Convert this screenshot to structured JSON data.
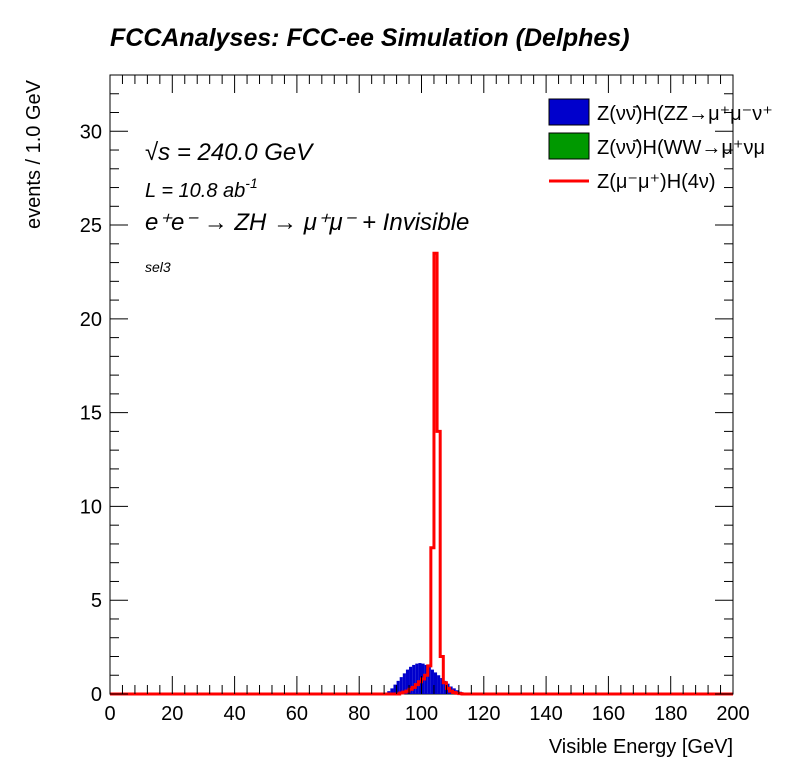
{
  "chart_data": {
    "type": "histogram",
    "title": "FCCAnalyses: FCC-ee Simulation (Delphes)",
    "xlabel": "Visible Energy [GeV]",
    "ylabel": "events / 1.0 GeV",
    "xlim": [
      0,
      200
    ],
    "ylim": [
      0,
      33
    ],
    "x_ticks": [
      0,
      20,
      40,
      60,
      80,
      100,
      120,
      140,
      160,
      180,
      200
    ],
    "y_ticks": [
      0,
      5,
      10,
      15,
      20,
      25,
      30
    ],
    "annotations": {
      "sqrt_s": "√s = 240.0 GeV",
      "lumi_prefix": "L = 10.8 ab",
      "lumi_exp": "-1",
      "process": "e⁺e⁻ → ZH → μ⁺μ⁻ + Invisible",
      "selection": "sel3"
    },
    "legend": {
      "position": "top-right",
      "entries": [
        {
          "label": "Z(νν̄)H(ZZ→μ⁺μ⁻ν⁺",
          "color": "#0000cc",
          "style": "fill"
        },
        {
          "label": "Z(νν̄)H(WW→μ⁺νμ",
          "color": "#009900",
          "style": "fill"
        },
        {
          "label": "Z(μ⁻μ⁺)H(4ν)",
          "color": "#ff0000",
          "style": "line"
        }
      ]
    },
    "series": [
      {
        "style": "stacked-fill",
        "color": "#0000cc",
        "bin_width": 1,
        "x": [
          88,
          89,
          90,
          91,
          92,
          93,
          94,
          95,
          96,
          97,
          98,
          99,
          100,
          101,
          102,
          103,
          104,
          105,
          106,
          107,
          108,
          109,
          110,
          111,
          112,
          113,
          114
        ],
        "values": [
          0.05,
          0.15,
          0.3,
          0.5,
          0.7,
          0.9,
          1.1,
          1.3,
          1.45,
          1.55,
          1.62,
          1.65,
          1.62,
          1.55,
          1.45,
          1.3,
          1.15,
          1.0,
          0.85,
          0.7,
          0.55,
          0.4,
          0.3,
          0.2,
          0.12,
          0.06,
          0.03
        ]
      },
      {
        "style": "stacked-fill",
        "color": "#009900",
        "bin_width": 1,
        "x": [],
        "values": []
      },
      {
        "style": "step-line",
        "color": "#ff0000",
        "bin_width": 1,
        "x": [
          93,
          94,
          95,
          96,
          97,
          98,
          99,
          100,
          101,
          102,
          103,
          104,
          105,
          106,
          107,
          108,
          109,
          110,
          111,
          112
        ],
        "values": [
          0.05,
          0.1,
          0.15,
          0.25,
          0.35,
          0.5,
          0.65,
          0.8,
          1.0,
          1.5,
          7.8,
          23.5,
          14.0,
          2.0,
          0.6,
          0.3,
          0.15,
          0.08,
          0.04,
          0.02
        ]
      }
    ]
  }
}
